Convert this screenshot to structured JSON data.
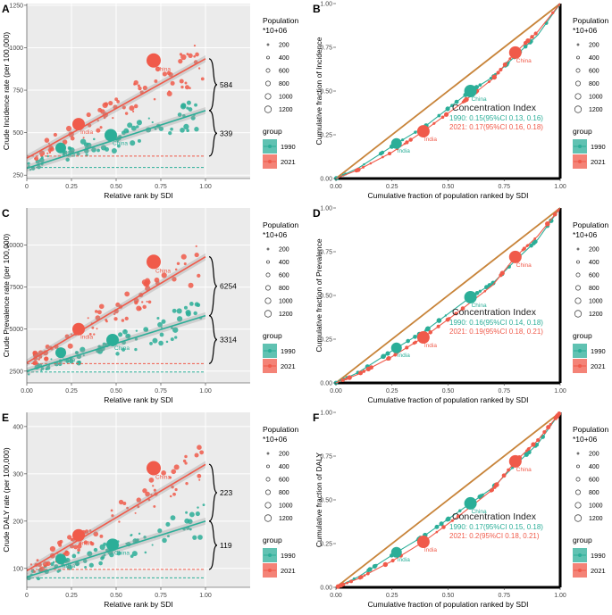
{
  "colors": {
    "g1990": "#2bae98",
    "g2021": "#f05a4a",
    "equality": "#c8843a",
    "panel": "#ebebeb",
    "grid": "#ffffff"
  },
  "x_label_left": "Relative rank by SDI",
  "x_label_right": "Cumulative fraction of population ranked by SDI",
  "legend": {
    "pop_title_1": "Population",
    "pop_title_2": "*10+06",
    "sizes": [
      "200",
      "400",
      "600",
      "800",
      "1000",
      "1200"
    ],
    "group_title": "group",
    "groups": [
      "1990",
      "2021"
    ]
  },
  "chart_data": [
    {
      "panel": "A",
      "type": "scatter",
      "ylabel": "Crude Incidence rate (per 100,000)",
      "xlim": [
        0,
        1.25
      ],
      "ylim": [
        230,
        1260
      ],
      "x_ticks": [
        "0",
        "0.25",
        "0.50",
        "0.75",
        "1.00"
      ],
      "x_tick_values": [
        0,
        0.25,
        0.5,
        0.75,
        1.0
      ],
      "y_ticks": [
        "250",
        "500",
        "750",
        "1000",
        "1250"
      ],
      "y_tick_values": [
        250,
        500,
        750,
        1000,
        1250
      ],
      "fit_1990": [
        [
          0,
          290
        ],
        [
          1,
          630
        ]
      ],
      "fit_2021": [
        [
          0,
          350
        ],
        [
          1,
          935
        ]
      ],
      "baseline_1990": 295,
      "baseline_2021": 362,
      "brace_2021": "584",
      "brace_1990": "339",
      "labeled_points": [
        {
          "label": "China",
          "group": "1990",
          "x": 0.47,
          "y": 485,
          "size": 7
        },
        {
          "label": "India",
          "group": "1990",
          "x": 0.19,
          "y": 410,
          "size": 6
        },
        {
          "label": "China",
          "group": "2021",
          "x": 0.71,
          "y": 925,
          "size": 8
        },
        {
          "label": "India",
          "group": "2021",
          "x": 0.29,
          "y": 550,
          "size": 7
        }
      ]
    },
    {
      "panel": "B",
      "type": "line",
      "ylabel": "Cumulative fraction of Incidence",
      "xlim": [
        0,
        1.0
      ],
      "ylim": [
        0,
        1.0
      ],
      "x_ticks": [
        "0.00",
        "0.25",
        "0.50",
        "0.75",
        "1.00"
      ],
      "x_tick_values": [
        0,
        0.25,
        0.5,
        0.75,
        1.0
      ],
      "y_ticks": [
        "0.00",
        "0.25",
        "0.50",
        "0.75",
        "1.00"
      ],
      "y_tick_values": [
        0,
        0.25,
        0.5,
        0.75,
        1.0
      ],
      "curve_1990": [
        [
          0,
          0
        ],
        [
          0.1,
          0.06
        ],
        [
          0.27,
          0.2
        ],
        [
          0.4,
          0.3
        ],
        [
          0.6,
          0.5
        ],
        [
          0.7,
          0.58
        ],
        [
          0.8,
          0.7
        ],
        [
          0.9,
          0.82
        ],
        [
          1,
          1
        ]
      ],
      "curve_2021": [
        [
          0,
          0
        ],
        [
          0.1,
          0.05
        ],
        [
          0.25,
          0.15
        ],
        [
          0.39,
          0.27
        ],
        [
          0.55,
          0.42
        ],
        [
          0.7,
          0.57
        ],
        [
          0.8,
          0.72
        ],
        [
          0.9,
          0.84
        ],
        [
          1,
          1
        ]
      ],
      "labeled_points": [
        {
          "label": "India",
          "group": "1990",
          "x": 0.27,
          "y": 0.2,
          "size": 6
        },
        {
          "label": "China",
          "group": "1990",
          "x": 0.6,
          "y": 0.5,
          "size": 7
        },
        {
          "label": "India",
          "group": "2021",
          "x": 0.39,
          "y": 0.27,
          "size": 7
        },
        {
          "label": "China",
          "group": "2021",
          "x": 0.8,
          "y": 0.72,
          "size": 7
        }
      ],
      "ci_title": "Concentration Index",
      "ci_1990": "1990: 0.15(95%CI 0.13, 0.16)",
      "ci_2021": "2021: 0.17(95%CI 0.16, 0.18)"
    },
    {
      "panel": "C",
      "type": "scatter",
      "ylabel": "Crude Prevalence rate (per 100,000)",
      "xlim": [
        0,
        1.25
      ],
      "ylim": [
        1800,
        12200
      ],
      "x_ticks": [
        "0.00",
        "0.25",
        "0.50",
        "0.75",
        "1.00"
      ],
      "x_tick_values": [
        0,
        0.25,
        0.5,
        0.75,
        1.0
      ],
      "y_ticks": [
        "2500",
        "5000",
        "7500",
        "10000"
      ],
      "y_tick_values": [
        2500,
        5000,
        7500,
        10000
      ],
      "fit_1990": [
        [
          0,
          2500
        ],
        [
          1,
          5800
        ]
      ],
      "fit_2021": [
        [
          0,
          3000
        ],
        [
          1,
          9300
        ]
      ],
      "baseline_1990": 2450,
      "baseline_2021": 2950,
      "brace_2021": "6254",
      "brace_1990": "3314",
      "labeled_points": [
        {
          "label": "China",
          "group": "1990",
          "x": 0.48,
          "y": 4350,
          "size": 7
        },
        {
          "label": "India",
          "group": "1990",
          "x": 0.19,
          "y": 3600,
          "size": 6
        },
        {
          "label": "China",
          "group": "2021",
          "x": 0.71,
          "y": 9000,
          "size": 8
        },
        {
          "label": "India",
          "group": "2021",
          "x": 0.29,
          "y": 5000,
          "size": 7
        }
      ]
    },
    {
      "panel": "D",
      "type": "line",
      "ylabel": "Cumulative fraction of Prevalence",
      "xlim": [
        0,
        1.0
      ],
      "ylim": [
        0,
        1.0
      ],
      "x_ticks": [
        "0.00",
        "0.25",
        "0.50",
        "0.75",
        "1.00"
      ],
      "x_tick_values": [
        0,
        0.25,
        0.5,
        0.75,
        1.0
      ],
      "y_ticks": [
        "0.00",
        "0.25",
        "0.50",
        "0.75",
        "1.00"
      ],
      "y_tick_values": [
        0,
        0.25,
        0.5,
        0.75,
        1.0
      ],
      "curve_1990": [
        [
          0,
          0
        ],
        [
          0.1,
          0.06
        ],
        [
          0.27,
          0.2
        ],
        [
          0.4,
          0.3
        ],
        [
          0.6,
          0.49
        ],
        [
          0.7,
          0.57
        ],
        [
          0.8,
          0.7
        ],
        [
          0.9,
          0.82
        ],
        [
          1,
          1
        ]
      ],
      "curve_2021": [
        [
          0,
          0
        ],
        [
          0.1,
          0.05
        ],
        [
          0.25,
          0.15
        ],
        [
          0.39,
          0.26
        ],
        [
          0.55,
          0.41
        ],
        [
          0.7,
          0.56
        ],
        [
          0.8,
          0.72
        ],
        [
          0.9,
          0.84
        ],
        [
          1,
          1
        ]
      ],
      "labeled_points": [
        {
          "label": "India",
          "group": "1990",
          "x": 0.27,
          "y": 0.2,
          "size": 6
        },
        {
          "label": "China",
          "group": "1990",
          "x": 0.6,
          "y": 0.49,
          "size": 7
        },
        {
          "label": "India",
          "group": "2021",
          "x": 0.39,
          "y": 0.26,
          "size": 7
        },
        {
          "label": "China",
          "group": "2021",
          "x": 0.8,
          "y": 0.72,
          "size": 7
        }
      ],
      "ci_title": "Concentration Index",
      "ci_1990": "1990: 0.16(95%CI 0.14, 0.18)",
      "ci_2021": "2021: 0.19(95%CI 0.18, 0.21)"
    },
    {
      "panel": "E",
      "type": "scatter",
      "ylabel": "Crude DALY rate (per 100,000)",
      "xlim": [
        0,
        1.25
      ],
      "ylim": [
        60,
        430
      ],
      "x_ticks": [
        "0",
        "0.25",
        "0.50",
        "0.75",
        "1.00"
      ],
      "x_tick_values": [
        0,
        0.25,
        0.5,
        0.75,
        1.0
      ],
      "y_ticks": [
        "100",
        "200",
        "300",
        "400"
      ],
      "y_tick_values": [
        100,
        200,
        300,
        400
      ],
      "fit_1990": [
        [
          0,
          82
        ],
        [
          1,
          200
        ]
      ],
      "fit_2021": [
        [
          0,
          95
        ],
        [
          1,
          320
        ]
      ],
      "baseline_1990": 80,
      "baseline_2021": 98,
      "brace_2021": "223",
      "brace_1990": "119",
      "labeled_points": [
        {
          "label": "China",
          "group": "1990",
          "x": 0.48,
          "y": 150,
          "size": 7
        },
        {
          "label": "India",
          "group": "1990",
          "x": 0.19,
          "y": 120,
          "size": 6
        },
        {
          "label": "China",
          "group": "2021",
          "x": 0.71,
          "y": 312,
          "size": 8
        },
        {
          "label": "India",
          "group": "2021",
          "x": 0.29,
          "y": 170,
          "size": 7
        }
      ]
    },
    {
      "panel": "F",
      "type": "line",
      "ylabel": "Cumulative fraction of DALY",
      "xlim": [
        0,
        1.0
      ],
      "ylim": [
        0,
        1.0
      ],
      "x_ticks": [
        "0.00",
        "0.25",
        "0.50",
        "0.75",
        "1.00"
      ],
      "x_tick_values": [
        0,
        0.25,
        0.5,
        0.75,
        1.0
      ],
      "y_ticks": [
        "0.00",
        "0.25",
        "0.50",
        "0.75",
        "1.00"
      ],
      "y_tick_values": [
        0,
        0.25,
        0.5,
        0.75,
        1.0
      ],
      "curve_1990": [
        [
          0,
          0
        ],
        [
          0.1,
          0.06
        ],
        [
          0.27,
          0.2
        ],
        [
          0.4,
          0.3
        ],
        [
          0.6,
          0.48
        ],
        [
          0.7,
          0.57
        ],
        [
          0.8,
          0.7
        ],
        [
          0.9,
          0.82
        ],
        [
          1,
          1
        ]
      ],
      "curve_2021": [
        [
          0,
          0
        ],
        [
          0.1,
          0.05
        ],
        [
          0.25,
          0.15
        ],
        [
          0.39,
          0.26
        ],
        [
          0.55,
          0.41
        ],
        [
          0.7,
          0.56
        ],
        [
          0.8,
          0.72
        ],
        [
          0.9,
          0.84
        ],
        [
          1,
          1
        ]
      ],
      "labeled_points": [
        {
          "label": "India",
          "group": "1990",
          "x": 0.27,
          "y": 0.2,
          "size": 6
        },
        {
          "label": "China",
          "group": "1990",
          "x": 0.6,
          "y": 0.48,
          "size": 7
        },
        {
          "label": "India",
          "group": "2021",
          "x": 0.39,
          "y": 0.26,
          "size": 7
        },
        {
          "label": "China",
          "group": "2021",
          "x": 0.8,
          "y": 0.72,
          "size": 7
        }
      ],
      "ci_title": "Concentration Index",
      "ci_1990": "1990: 0.17(95%CI 0.15, 0.18)",
      "ci_2021": "2021: 0.2(95%CI 0.18, 0.21)"
    }
  ]
}
